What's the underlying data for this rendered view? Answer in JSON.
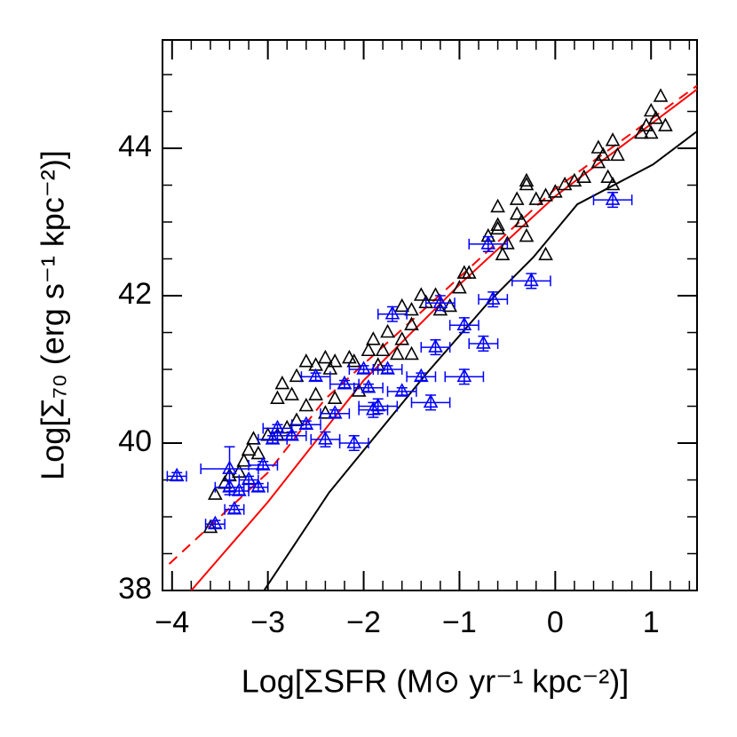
{
  "chart_data": {
    "type": "scatter",
    "x_label": "Log[ΣSFR (M⊙ yr⁻¹ kpc⁻²)]",
    "y_label": "Log[Σ₇₀ (erg s⁻¹ kpc⁻²)]",
    "xlim": [
      -4.1,
      1.48
    ],
    "ylim": [
      38,
      45.47
    ],
    "xticks": [
      {
        "value": -4,
        "label": "−4"
      },
      {
        "value": -3,
        "label": "−3"
      },
      {
        "value": -2,
        "label": "−2"
      },
      {
        "value": -1,
        "label": "−1"
      },
      0,
      1
    ],
    "yticks": [
      38,
      40,
      42,
      44
    ],
    "xminorticks": [
      -4,
      -3.8,
      -3.6,
      -3.4,
      -3.2,
      -3,
      -2.8,
      -2.6,
      -2.4,
      -2.2,
      -2,
      -1.8,
      -1.6,
      -1.4,
      -1.2,
      -1,
      -0.8,
      -0.6,
      -0.4,
      -0.2,
      0,
      0.2,
      0.4,
      0.6,
      0.8,
      1,
      1.2,
      1.4
    ],
    "yminorticks": [
      38.5,
      39,
      39.5,
      40.5,
      41,
      41.5,
      42.5,
      43,
      43.5,
      44.5,
      45
    ],
    "series": [
      {
        "color": "#000000",
        "x": [
          1.1,
          1.0,
          1.05,
          0.9,
          1.0,
          1.15,
          0.95,
          0.6,
          0.65,
          0.45,
          0.45,
          0.5,
          0.3,
          0.2,
          0.1,
          0.0,
          -0.1,
          -0.2,
          -0.3,
          0.55,
          -0.1,
          -0.3,
          -0.4,
          -0.35,
          -0.3,
          -0.4,
          -0.5,
          -0.6,
          -0.55,
          -0.7,
          -0.6,
          -0.9,
          -0.95,
          -1.0,
          -1.1,
          -1.2,
          -1.25,
          -1.35,
          -1.5,
          -1.5,
          -1.6,
          -1.65,
          -1.5,
          -1.75,
          -1.8,
          -1.85,
          -1.9,
          -1.95,
          -2.1,
          -2.15,
          -2.3,
          -2.35,
          -2.4,
          -2.5,
          -2.6,
          -2.7,
          -2.75,
          -2.85,
          -2.9,
          -2.5,
          -2.3,
          -2.4,
          -2.6,
          -2.7,
          -2.8,
          -2.9,
          -3.0,
          -3.15,
          -3.1,
          -3.2,
          -3.25,
          -3.3,
          -3.4,
          -3.45,
          -3.55,
          -3.6,
          -2.2,
          -2.05,
          -1.6,
          -1.4,
          -0.6,
          0.6
        ],
        "y": [
          44.7,
          44.5,
          44.4,
          44.2,
          44.2,
          44.3,
          44.3,
          44.1,
          43.9,
          44.0,
          43.8,
          43.9,
          43.6,
          43.55,
          43.5,
          43.4,
          43.35,
          43.3,
          43.55,
          43.6,
          42.55,
          42.8,
          43.1,
          43.0,
          43.5,
          43.3,
          42.7,
          42.9,
          42.55,
          42.8,
          42.95,
          42.3,
          42.3,
          42.1,
          41.85,
          41.8,
          42.0,
          41.9,
          41.8,
          41.6,
          41.4,
          41.2,
          41.2,
          41.5,
          41.25,
          41.05,
          41.4,
          41.25,
          41.1,
          41.15,
          41.1,
          41.0,
          41.15,
          41.05,
          41.1,
          40.9,
          40.65,
          40.8,
          40.6,
          40.65,
          40.6,
          40.4,
          40.5,
          40.3,
          40.2,
          40.1,
          40.1,
          40.05,
          39.85,
          39.9,
          39.75,
          39.6,
          39.55,
          39.45,
          39.3,
          38.85,
          40.8,
          40.7,
          41.85,
          42.0,
          43.2,
          43.5
        ]
      },
      {
        "color": "#0000ff",
        "x": [
          -3.95,
          -3.55,
          -3.4,
          -3.4,
          -3.35,
          -3.3,
          -3.2,
          -3.1,
          -3.05,
          -2.95,
          -2.9,
          -2.75,
          -2.6,
          -2.5,
          -2.4,
          -2.2,
          -2.1,
          -1.95,
          -1.85,
          -1.75,
          -1.6,
          -1.7,
          -1.4,
          -1.25,
          -1.2,
          -1.3,
          -0.95,
          -0.95,
          -0.75,
          -0.65,
          -0.7,
          -0.25,
          0.6,
          -2.3,
          -1.9,
          -2.0
        ],
        "y": [
          39.55,
          38.9,
          39.65,
          39.4,
          39.1,
          39.35,
          39.5,
          39.4,
          39.7,
          40.05,
          40.2,
          40.1,
          40.25,
          40.9,
          40.05,
          40.8,
          40.0,
          40.75,
          40.5,
          41.0,
          40.7,
          41.75,
          40.9,
          41.3,
          41.9,
          40.55,
          40.9,
          41.6,
          41.35,
          41.95,
          42.7,
          42.2,
          43.3,
          40.4,
          40.45,
          41.0
        ],
        "xerr": [
          0.1,
          0.1,
          0.3,
          0.15,
          0.1,
          0.1,
          0.1,
          0.1,
          0.15,
          0.15,
          0.15,
          0.15,
          0.15,
          0.15,
          0.15,
          0.15,
          0.15,
          0.15,
          0.2,
          0.15,
          0.15,
          0.15,
          0.15,
          0.15,
          0.15,
          0.2,
          0.2,
          0.15,
          0.15,
          0.15,
          0.2,
          0.2,
          0.2,
          0.15,
          0.15,
          0.15
        ],
        "yerr": [
          0.05,
          0.05,
          0.3,
          0.1,
          0.05,
          0.05,
          0.05,
          0.05,
          0.05,
          0.05,
          0.05,
          0.05,
          0.05,
          0.05,
          0.1,
          0.05,
          0.1,
          0.05,
          0.1,
          0.05,
          0.05,
          0.1,
          0.05,
          0.1,
          0.1,
          0.1,
          0.1,
          0.1,
          0.1,
          0.1,
          0.1,
          0.1,
          0.1,
          0.05,
          0.1,
          0.05
        ]
      }
    ],
    "lines": [
      {
        "color": "#000000",
        "dashed": false,
        "x": [
          -3.04,
          -2.36,
          -1.34,
          -0.69,
          -0.23,
          0.23,
          1.02,
          1.48
        ],
        "y": [
          38,
          39.33,
          40.95,
          41.92,
          42.52,
          43.24,
          43.78,
          44.23
        ]
      },
      {
        "color": "#ff0000",
        "dashed": false,
        "x": [
          -3.8,
          -3,
          -2,
          -1,
          0,
          1.48
        ],
        "y": [
          38,
          39.2,
          40.85,
          42.15,
          43.35,
          44.8
        ]
      },
      {
        "color": "#ff0000",
        "dashed": true,
        "x": [
          -4.03,
          -3,
          -2.4,
          -1,
          0,
          1.48
        ],
        "y": [
          38.36,
          39.6,
          40.6,
          42.25,
          43.45,
          44.85
        ]
      }
    ]
  }
}
